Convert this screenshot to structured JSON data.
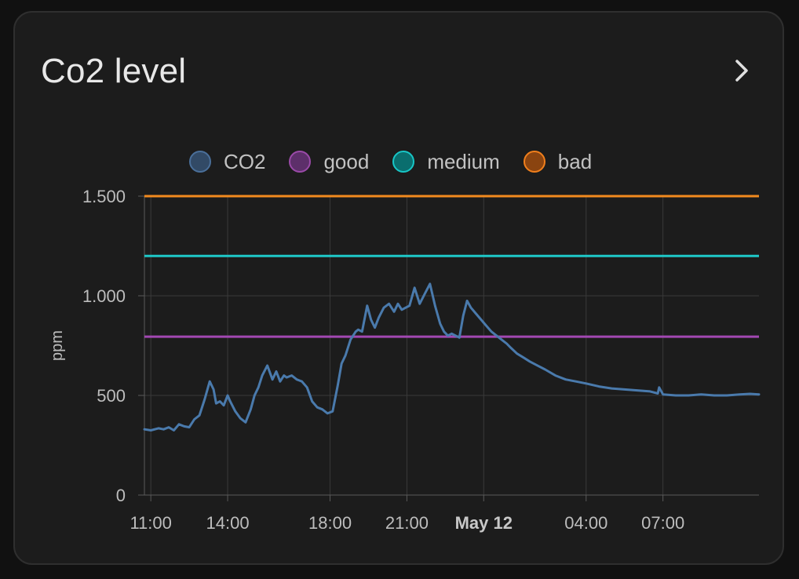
{
  "card": {
    "title": "Co2 level",
    "more_icon": "chevron-right-icon"
  },
  "legend": [
    {
      "label": "CO2",
      "fill": "#324a66",
      "stroke": "#4a6f9a"
    },
    {
      "label": "good",
      "fill": "#5d2f6a",
      "stroke": "#9a4aa8"
    },
    {
      "label": "medium",
      "fill": "#0a6e6e",
      "stroke": "#18c6c6"
    },
    {
      "label": "bad",
      "fill": "#8a4410",
      "stroke": "#f07f1c"
    }
  ],
  "chart_data": {
    "type": "line",
    "ylabel": "ppm",
    "xlabel": "",
    "ylim": [
      0,
      1500
    ],
    "y_ticks": [
      {
        "value": 0,
        "label": "0"
      },
      {
        "value": 500,
        "label": "500"
      },
      {
        "value": 1000,
        "label": "1.000"
      },
      {
        "value": 1500,
        "label": "1.500"
      }
    ],
    "x_range_hours": [
      10.75,
      34.75
    ],
    "x_ticks": [
      {
        "hour": 11,
        "label": "11:00",
        "bold": false
      },
      {
        "hour": 14,
        "label": "14:00",
        "bold": false
      },
      {
        "hour": 18,
        "label": "18:00",
        "bold": false
      },
      {
        "hour": 21,
        "label": "21:00",
        "bold": false
      },
      {
        "hour": 24,
        "label": "May 12",
        "bold": true
      },
      {
        "hour": 28,
        "label": "04:00",
        "bold": false
      },
      {
        "hour": 31,
        "label": "07:00",
        "bold": false
      }
    ],
    "grid": true,
    "legend_position": "top",
    "thresholds": [
      {
        "name": "good",
        "value": 795,
        "color": "#a248b2"
      },
      {
        "name": "medium",
        "value": 1200,
        "color": "#1ec8c8"
      },
      {
        "name": "bad",
        "value": 1500,
        "color": "#f28a1e"
      }
    ],
    "series": [
      {
        "name": "CO2",
        "color": "#4a7aac",
        "x": [
          10.75,
          11.0,
          11.3,
          11.5,
          11.7,
          11.9,
          12.1,
          12.3,
          12.5,
          12.7,
          12.9,
          13.1,
          13.3,
          13.45,
          13.55,
          13.7,
          13.85,
          14.0,
          14.1,
          14.3,
          14.5,
          14.7,
          14.9,
          15.05,
          15.2,
          15.35,
          15.55,
          15.75,
          15.9,
          16.05,
          16.2,
          16.3,
          16.5,
          16.7,
          16.9,
          17.1,
          17.3,
          17.5,
          17.7,
          17.9,
          18.1,
          18.3,
          18.45,
          18.6,
          18.8,
          19.0,
          19.1,
          19.25,
          19.45,
          19.6,
          19.75,
          19.9,
          20.1,
          20.3,
          20.5,
          20.65,
          20.8,
          20.95,
          21.1,
          21.3,
          21.5,
          21.7,
          21.9,
          22.1,
          22.3,
          22.45,
          22.6,
          22.75,
          22.9,
          23.05,
          23.2,
          23.35,
          23.5,
          23.7,
          23.9,
          24.1,
          24.3,
          24.5,
          24.7,
          24.9,
          25.05,
          25.3,
          25.55,
          25.8,
          26.1,
          26.4,
          26.8,
          27.2,
          27.6,
          28.0,
          28.5,
          29.0,
          29.5,
          30.0,
          30.5,
          30.8,
          30.85,
          31.0,
          31.5,
          32.0,
          32.5,
          33.0,
          33.5,
          34.0,
          34.4,
          34.75
        ],
        "values": [
          330,
          325,
          335,
          330,
          340,
          325,
          355,
          345,
          340,
          380,
          400,
          480,
          570,
          530,
          460,
          470,
          450,
          500,
          470,
          420,
          385,
          365,
          430,
          500,
          540,
          600,
          650,
          580,
          620,
          570,
          600,
          590,
          600,
          580,
          570,
          540,
          470,
          440,
          430,
          410,
          420,
          550,
          660,
          700,
          780,
          820,
          830,
          820,
          950,
          880,
          840,
          890,
          940,
          960,
          920,
          960,
          930,
          940,
          950,
          1040,
          960,
          1010,
          1060,
          950,
          860,
          820,
          800,
          810,
          800,
          790,
          900,
          975,
          940,
          910,
          880,
          850,
          820,
          800,
          780,
          760,
          740,
          710,
          690,
          670,
          650,
          630,
          600,
          580,
          570,
          560,
          545,
          535,
          530,
          525,
          520,
          510,
          540,
          505,
          500,
          500,
          505,
          500,
          500,
          505,
          508,
          505
        ]
      }
    ]
  }
}
